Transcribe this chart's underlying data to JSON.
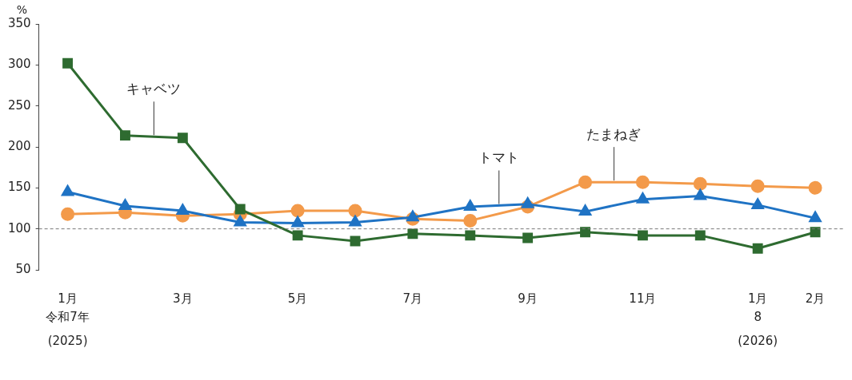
{
  "chart_data": {
    "type": "line",
    "ylabel": "%",
    "categories": [
      "1月",
      null,
      "3月",
      null,
      "5月",
      null,
      "7月",
      null,
      "9月",
      null,
      "11月",
      null,
      "1月",
      "2月"
    ],
    "annotations": [
      "令和7年",
      "(2025)",
      "8",
      "(2026)"
    ],
    "series": [
      {
        "name": "キャベツ",
        "color": "#2e6b30",
        "marker": "square",
        "values": [
          302,
          214,
          211,
          124,
          92,
          85,
          94,
          92,
          89,
          96,
          92,
          92,
          76,
          96
        ]
      },
      {
        "name": "トマト",
        "color": "#1f73c4",
        "marker": "triangle",
        "values": [
          145,
          128,
          122,
          108,
          107,
          108,
          114,
          127,
          130,
          121,
          136,
          140,
          129,
          113
        ]
      },
      {
        "name": "たまねぎ",
        "color": "#f39a4a",
        "marker": "circle",
        "values": [
          118,
          120,
          116,
          118,
          122,
          122,
          112,
          110,
          127,
          157,
          157,
          155,
          152,
          150
        ]
      }
    ],
    "ylim": [
      50,
      350
    ],
    "yticks": [
      50,
      100,
      150,
      200,
      250,
      300,
      350
    ],
    "ref_lines": [
      {
        "axis": "y",
        "value": 100,
        "color": "#777777",
        "line_style": "dashed"
      }
    ],
    "grid": false,
    "legend": false,
    "line_style": "solid"
  }
}
